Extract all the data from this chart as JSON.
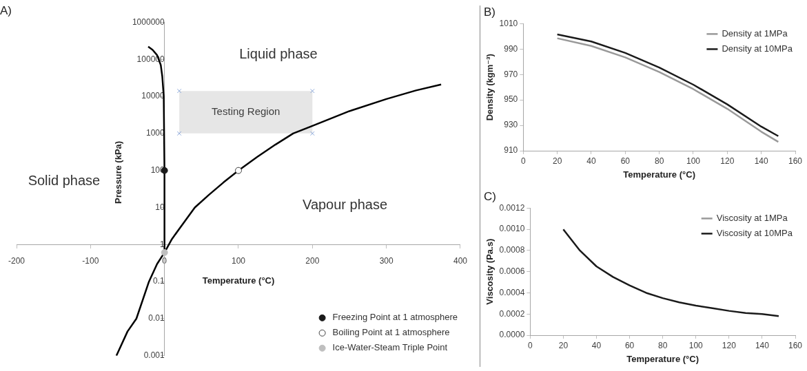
{
  "chart_data": [
    {
      "type": "line",
      "title": "A)",
      "xlabel": "Temperature (°C)",
      "ylabel": "Pressure (kPa)",
      "log": "y",
      "legend": "bottom right",
      "xlim": [
        -200,
        400
      ],
      "xticks": [
        -200,
        -100,
        0,
        100,
        200,
        300,
        400
      ],
      "ylim": [
        0.001,
        1000000
      ],
      "yticks": [
        0.001,
        0.01,
        0.1,
        1,
        10,
        100,
        1000,
        10000,
        100000,
        1000000
      ],
      "series": [
        {
          "type": "area",
          "name": "Testing Region",
          "color": "#e6e6e6",
          "marker": "cross",
          "x": [
            20,
            20,
            200,
            200
          ],
          "values": [
            1000,
            14000,
            14000,
            1000
          ]
        },
        {
          "type": "line",
          "color": "#000000",
          "x": [
            -65,
            -50,
            -38,
            -21,
            -10,
            0.01,
            10,
            19,
            41,
            60,
            80,
            100,
            125,
            150,
            174,
            200,
            250,
            300,
            340,
            374
          ],
          "values": [
            0.001,
            0.0045,
            0.01,
            0.1,
            0.3,
            0.611,
            1.4,
            2.5,
            10,
            22,
            48,
            100,
            230,
            500,
            1000,
            1600,
            4000,
            8500,
            14500,
            21000
          ]
        },
        {
          "type": "line",
          "color": "#000000",
          "x": [
            0.01,
            0,
            -1,
            -3,
            -5,
            -10,
            -16,
            -22
          ],
          "values": [
            0.611,
            100,
            10000,
            35000,
            70000,
            130000,
            180000,
            220000
          ]
        },
        {
          "type": "scatter",
          "name": "Freezing Point at 1 atmosphere",
          "marker": "circle",
          "color": "#1a1a1a",
          "x": [
            0
          ],
          "values": [
            100
          ]
        },
        {
          "type": "scatter",
          "name": "Boiling Point at 1 atmosphere",
          "marker": "circle",
          "color": "#ffffff",
          "x": [
            100
          ],
          "values": [
            100
          ]
        },
        {
          "type": "scatter",
          "name": "Ice-Water-Steam Triple Point",
          "marker": "circle",
          "color": "#bfbfbf",
          "x": [
            0.01
          ],
          "values": [
            0.611
          ]
        }
      ],
      "annotations": [
        "Liquid phase",
        "Solid phase",
        "Vapour phase"
      ]
    },
    {
      "type": "line",
      "title": "B)",
      "xlabel": "Temperature (°C)",
      "ylabel": "Density (kgm⁻³)",
      "legend": "top right",
      "xlim": [
        0,
        160
      ],
      "xticks": [
        0,
        20,
        40,
        60,
        80,
        100,
        120,
        140,
        160
      ],
      "ylim": [
        910,
        1010
      ],
      "yticks": [
        910,
        930,
        950,
        970,
        990,
        1010
      ],
      "x": [
        20,
        40,
        60,
        80,
        100,
        120,
        140,
        150
      ],
      "series": [
        {
          "name": "Density at 1MPa",
          "color": "#999999",
          "values": [
            998.5,
            992.5,
            983.5,
            972,
            958.5,
            943,
            925,
            917
          ]
        },
        {
          "name": "Density at 10MPa",
          "color": "#1a1a1a",
          "values": [
            1001.5,
            996,
            987,
            975.5,
            962,
            946.5,
            929,
            921.5
          ]
        }
      ]
    },
    {
      "type": "line",
      "title": "C)",
      "xlabel": "Temperature (°C)",
      "ylabel": "Viscosity (Pa.s)",
      "legend": "top right",
      "xlim": [
        0,
        160
      ],
      "xticks": [
        0,
        20,
        40,
        60,
        80,
        100,
        120,
        140,
        160
      ],
      "ylim": [
        0,
        0.0012
      ],
      "yticks": [
        {
          "value": 0,
          "label": "0.0000"
        },
        {
          "value": 0.0002,
          "label": "0.0002"
        },
        {
          "value": 0.0004,
          "label": "0.0004"
        },
        {
          "value": 0.0006,
          "label": "0.0006"
        },
        {
          "value": 0.0008,
          "label": "0.0008"
        },
        {
          "value": 0.001,
          "label": "0.0010"
        },
        {
          "value": 0.0012,
          "label": "0.0012"
        }
      ],
      "x": [
        20,
        30,
        40,
        50,
        60,
        70,
        80,
        90,
        100,
        110,
        120,
        130,
        140,
        150
      ],
      "series": [
        {
          "name": "Viscosity at 1MPa",
          "color": "#999999",
          "values": [
            null,
            null,
            null,
            null,
            null,
            null,
            null,
            null,
            null,
            null,
            null,
            null,
            null,
            null
          ]
        },
        {
          "name": "Viscosity at 10MPa",
          "color": "#1a1a1a",
          "values": [
            0.001,
            0.0008,
            0.00065,
            0.00055,
            0.00047,
            0.0004,
            0.00035,
            0.00031,
            0.00028,
            0.000255,
            0.00023,
            0.00021,
            0.0002,
            0.00018
          ]
        }
      ]
    }
  ]
}
